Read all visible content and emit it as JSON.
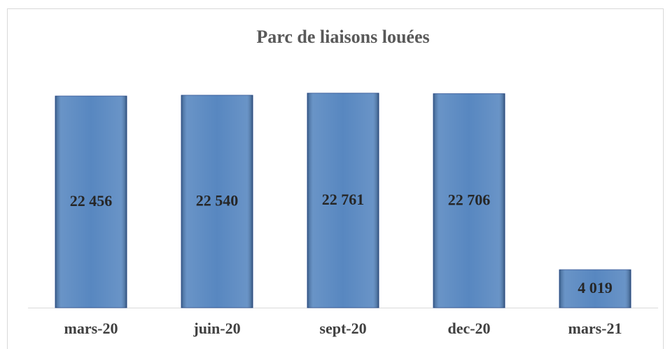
{
  "chart_data": {
    "type": "bar",
    "title": "Parc de liaisons louées",
    "categories": [
      "mars-20",
      "juin-20",
      "sept-20",
      "dec-20",
      "mars-21"
    ],
    "values": [
      22456,
      22540,
      22761,
      22706,
      4019
    ],
    "value_labels": [
      "22 456",
      "22 540",
      "22 761",
      "22 706",
      "4 019"
    ],
    "color": "#4f81bd"
  }
}
